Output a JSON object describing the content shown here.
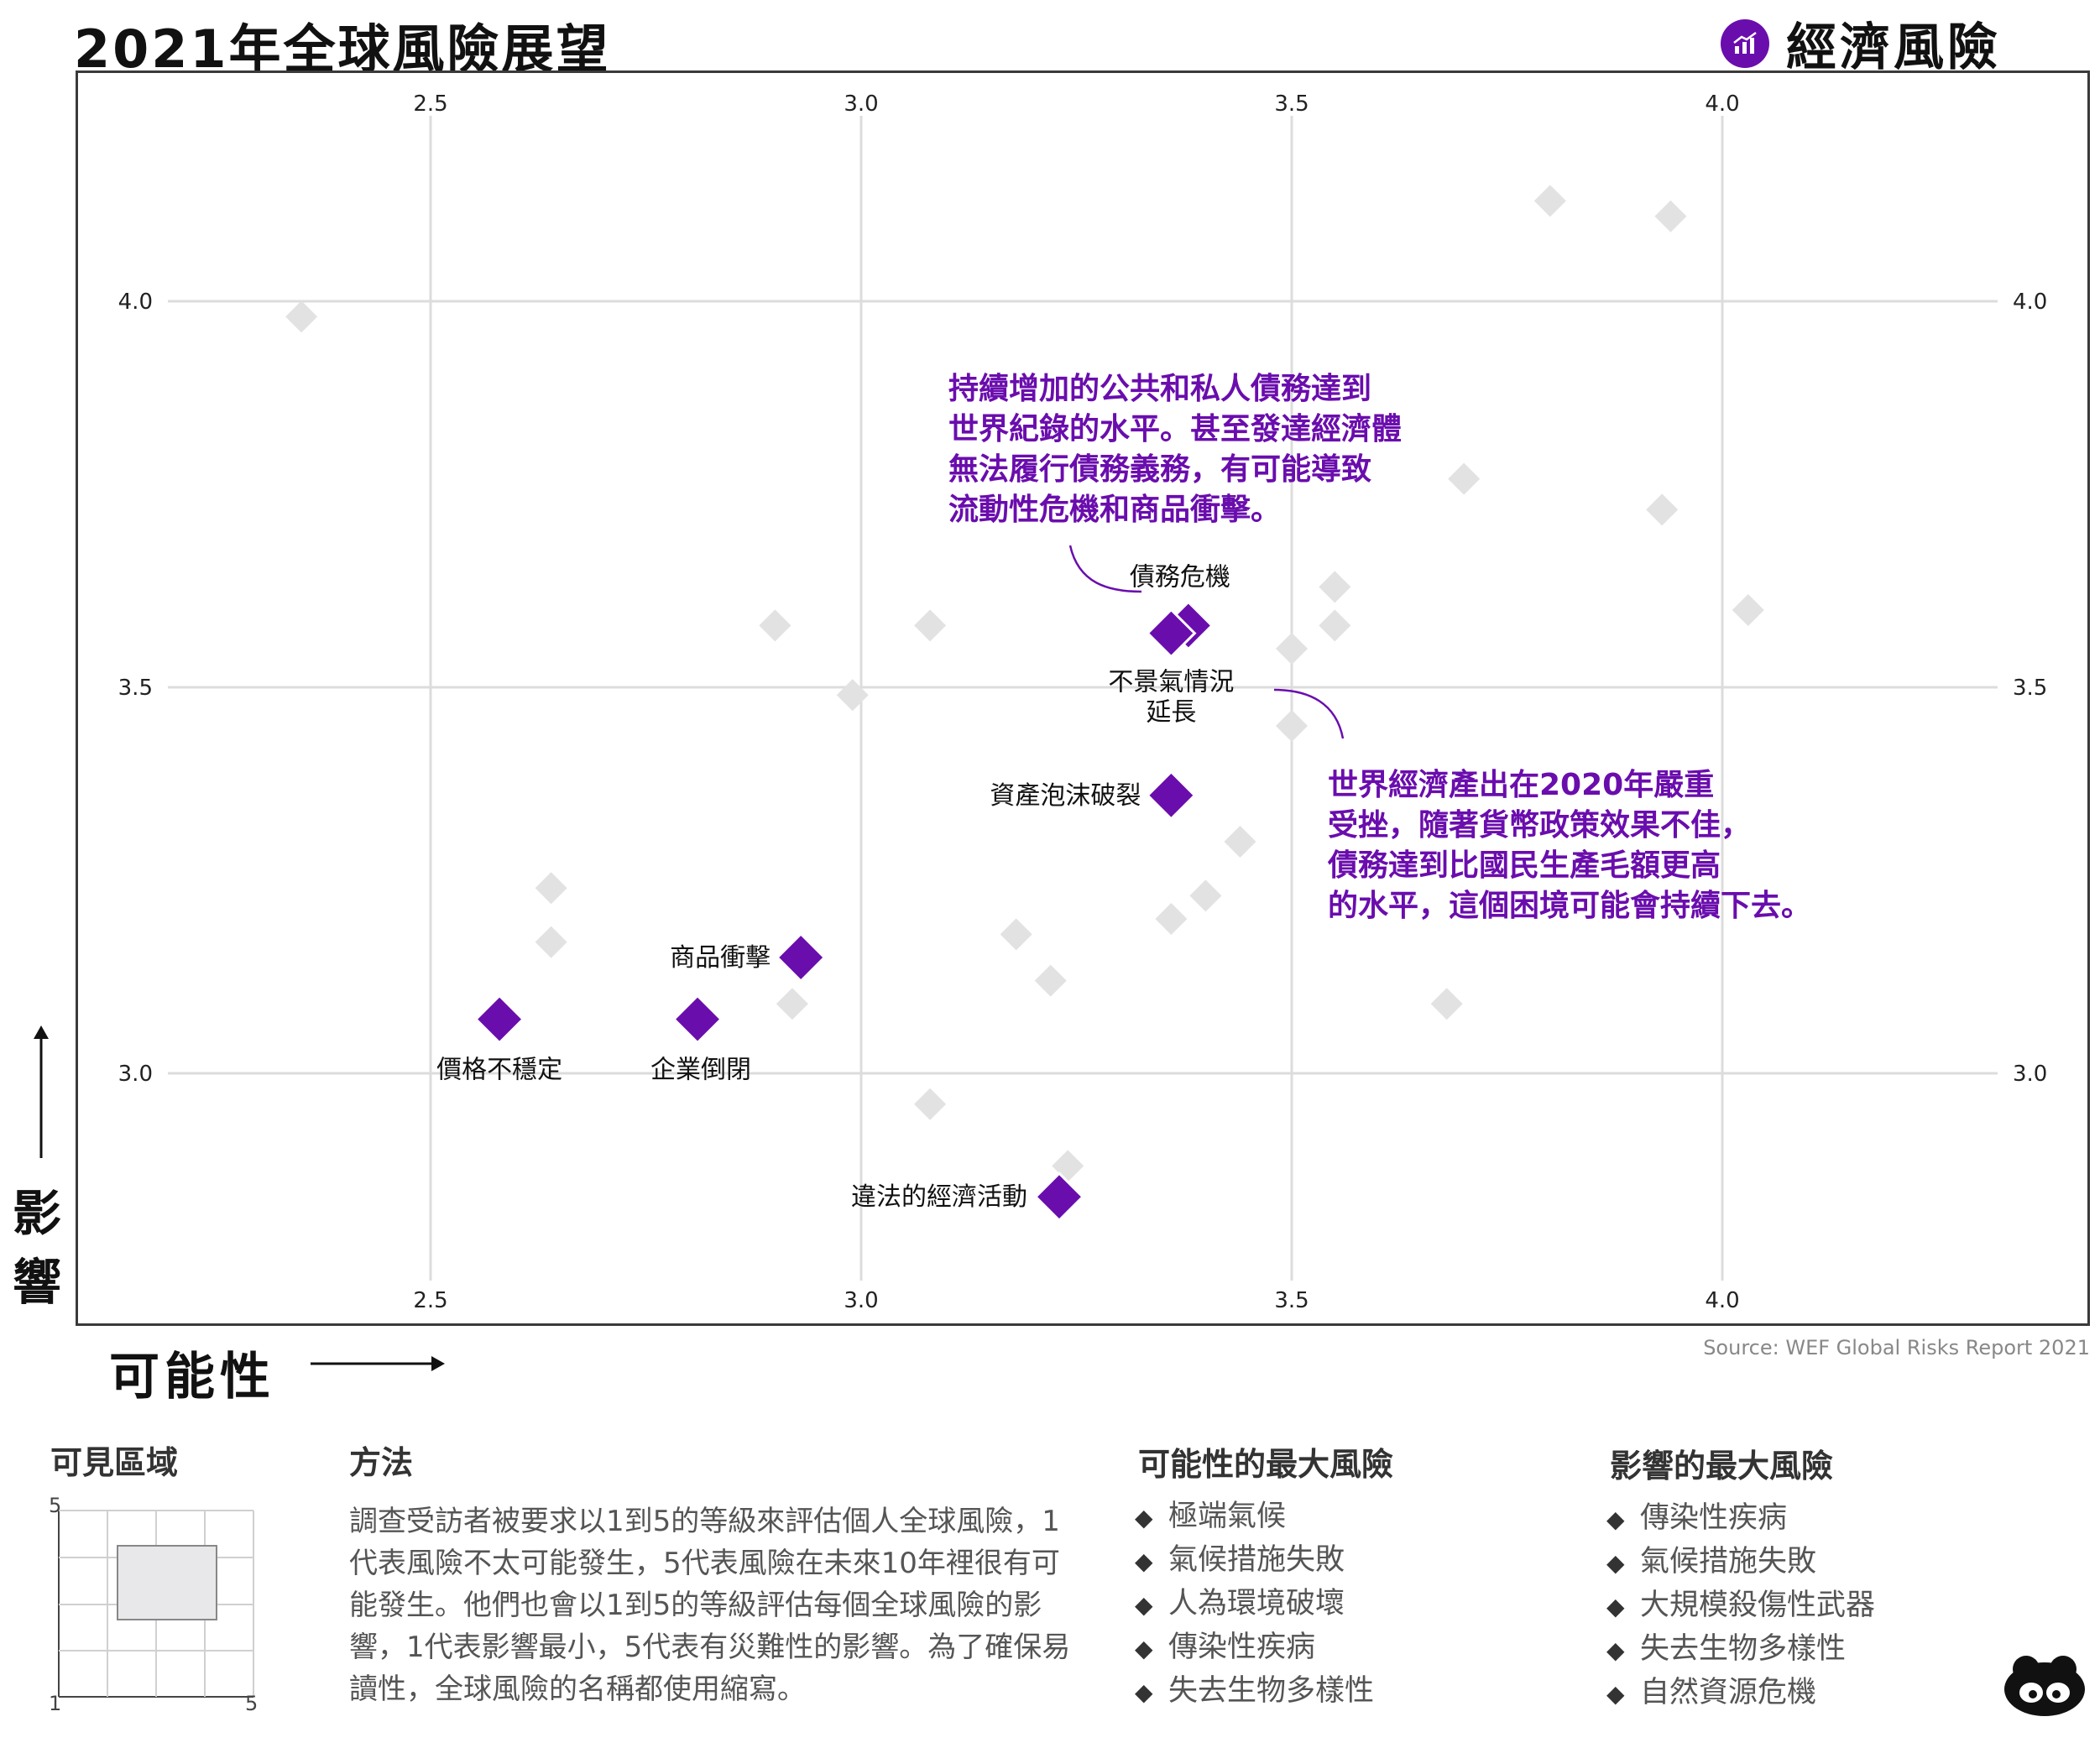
{
  "header": {
    "title": "2021年全球風險展望",
    "category_label": "經濟風險",
    "category_icon": "chart-icon",
    "accent_color": "#6a0dad"
  },
  "chart_data": {
    "type": "scatter",
    "xlabel": "可能性",
    "ylabel": "影響",
    "xlim": [
      2.2,
      4.42
    ],
    "ylim": [
      2.67,
      4.3
    ],
    "x_ticks": [
      "2.5",
      "3.0",
      "3.5",
      "4.0"
    ],
    "y_ticks": [
      "3.0",
      "3.5",
      "4.0"
    ],
    "x_tick_values": [
      2.5,
      3.0,
      3.5,
      4.0
    ],
    "y_tick_values": [
      3.0,
      3.5,
      4.0
    ],
    "grid": true,
    "highlight_color": "#6a0dad",
    "other_color": "#e2e2e2",
    "highlighted": [
      {
        "label": "債務危機",
        "x": 3.38,
        "y": 3.58
      },
      {
        "label": "不景氣情況延長",
        "x": 3.36,
        "y": 3.57
      },
      {
        "label": "資產泡沫破裂",
        "x": 3.36,
        "y": 3.36
      },
      {
        "label": "商品衝擊",
        "x": 2.93,
        "y": 3.15
      },
      {
        "label": "價格不穩定",
        "x": 2.58,
        "y": 3.07
      },
      {
        "label": "企業倒閉",
        "x": 2.81,
        "y": 3.07
      },
      {
        "label": "違法的經濟活動",
        "x": 3.23,
        "y": 2.84
      }
    ],
    "others": [
      {
        "x": 2.35,
        "y": 3.98
      },
      {
        "x": 3.8,
        "y": 4.13
      },
      {
        "x": 3.94,
        "y": 4.11
      },
      {
        "x": 3.7,
        "y": 3.77
      },
      {
        "x": 3.93,
        "y": 3.73
      },
      {
        "x": 3.55,
        "y": 3.63
      },
      {
        "x": 4.03,
        "y": 3.6
      },
      {
        "x": 2.9,
        "y": 3.58
      },
      {
        "x": 3.08,
        "y": 3.58
      },
      {
        "x": 3.55,
        "y": 3.58
      },
      {
        "x": 3.5,
        "y": 3.55
      },
      {
        "x": 2.99,
        "y": 3.49
      },
      {
        "x": 3.5,
        "y": 3.45
      },
      {
        "x": 3.44,
        "y": 3.3
      },
      {
        "x": 2.64,
        "y": 3.24
      },
      {
        "x": 3.4,
        "y": 3.23
      },
      {
        "x": 3.36,
        "y": 3.2
      },
      {
        "x": 2.64,
        "y": 3.17
      },
      {
        "x": 3.18,
        "y": 3.18
      },
      {
        "x": 3.22,
        "y": 3.12
      },
      {
        "x": 2.92,
        "y": 3.09
      },
      {
        "x": 3.68,
        "y": 3.09
      },
      {
        "x": 3.08,
        "y": 2.96
      },
      {
        "x": 3.24,
        "y": 2.88
      }
    ],
    "annotations": [
      "持續增加的公共和私人債務達到\n世界紀錄的水平。甚至發達經濟體\n無法履行債務義務，有可能導致\n流動性危機和商品衝擊。",
      "世界經濟產出在2020年嚴重\n受挫，隨著貨幣政策效果不佳，\n債務達到比國民生產毛額更高\n的水平，這個困境可能會持續下去。"
    ]
  },
  "source": "Source: WEF Global Risks Report 2021",
  "visible_area": {
    "title": "可見區域",
    "axis_min": "1",
    "axis_max": "5"
  },
  "method": {
    "title": "方法",
    "body": "調查受訪者被要求以1到5的等級來評估個人全球風險，1代表風險不太可能發生，5代表風險在未來10年裡很有可能發生。他們也會以1到5的等級評估每個全球風險的影響，1代表影響最小，5代表有災難性的影響。為了確保易讀性，全球風險的名稱都使用縮寫。"
  },
  "top_likelihood": {
    "title": "可能性的最大風險",
    "items": [
      "極端氣候",
      "氣候措施失敗",
      "人為環境破壞",
      "傳染性疾病",
      "失去生物多樣性"
    ]
  },
  "top_impact": {
    "title": "影響的最大風險",
    "items": [
      "傳染性疾病",
      "氣候措施失敗",
      "大規模殺傷性武器",
      "失去生物多樣性",
      "自然資源危機"
    ]
  },
  "bullet_glyph": "◆"
}
